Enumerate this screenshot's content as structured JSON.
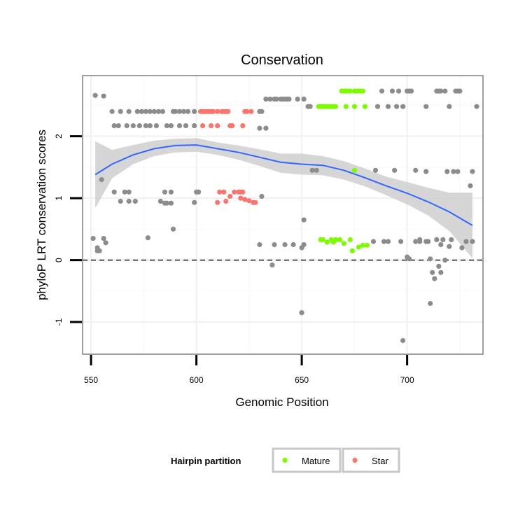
{
  "chart_data": {
    "type": "scatter",
    "title": "Conservation",
    "xlabel": "Genomic Position",
    "ylabel": "phyloP LRT conservation scores",
    "xlim": [
      546,
      736
    ],
    "ylim": [
      -1.52,
      2.98
    ],
    "x_ticks": [
      550,
      600,
      650,
      700
    ],
    "y_ticks": [
      -1,
      0,
      1,
      2
    ],
    "grid": true,
    "reference_line": {
      "y": 0,
      "style": "dashed"
    },
    "legend": {
      "title": "Hairpin partition",
      "position": "bottom",
      "entries": [
        {
          "label": "Mature",
          "color": "#7CFC00"
        },
        {
          "label": "Star",
          "color": "#F8766D"
        }
      ]
    },
    "colors": {
      "other": "#8c8c8c",
      "mature": "#7CFC00",
      "star": "#F8766D",
      "smooth_line": "#3366FF",
      "ribbon": "#cccccc"
    },
    "smooth": {
      "x": [
        552,
        560,
        570,
        580,
        590,
        600,
        610,
        620,
        630,
        640,
        650,
        660,
        670,
        680,
        690,
        700,
        710,
        720,
        731
      ],
      "y": [
        1.38,
        1.55,
        1.7,
        1.8,
        1.85,
        1.86,
        1.8,
        1.74,
        1.66,
        1.58,
        1.55,
        1.53,
        1.45,
        1.33,
        1.2,
        1.08,
        0.94,
        0.78,
        0.56
      ],
      "lower": [
        0.84,
        1.32,
        1.55,
        1.68,
        1.74,
        1.75,
        1.7,
        1.62,
        1.52,
        1.41,
        1.38,
        1.37,
        1.3,
        1.19,
        1.05,
        0.9,
        0.72,
        0.47,
        0.03
      ],
      "upper": [
        1.92,
        1.78,
        1.86,
        1.93,
        1.96,
        1.97,
        1.9,
        1.85,
        1.79,
        1.72,
        1.72,
        1.68,
        1.6,
        1.48,
        1.35,
        1.26,
        1.17,
        1.09,
        1.09
      ]
    },
    "series": [
      {
        "name": "Mature",
        "x": [
          669,
          670,
          671,
          672,
          673,
          675,
          676,
          677,
          678,
          679,
          658,
          659,
          660,
          661,
          662,
          663,
          664,
          665,
          666,
          671,
          675,
          680,
          675,
          659,
          660,
          662,
          664,
          665,
          666,
          668,
          670,
          673,
          677,
          679,
          681,
          674
        ],
        "y": [
          2.73,
          2.73,
          2.73,
          2.73,
          2.73,
          2.73,
          2.73,
          2.73,
          2.73,
          2.73,
          2.48,
          2.48,
          2.48,
          2.48,
          2.48,
          2.48,
          2.48,
          2.48,
          2.48,
          2.48,
          2.48,
          2.48,
          1.45,
          0.33,
          0.33,
          0.29,
          0.33,
          0.29,
          0.33,
          0.33,
          0.27,
          0.33,
          0.21,
          0.24,
          0.24,
          0.15
        ]
      },
      {
        "name": "Star",
        "x": [
          602,
          603,
          604,
          605,
          606,
          607,
          608,
          610,
          612,
          613,
          614,
          615,
          623,
          624,
          626,
          603,
          607,
          610,
          616,
          617,
          622,
          611,
          613,
          618,
          620,
          621,
          622,
          616,
          621,
          623,
          625,
          627,
          628,
          610,
          614
        ],
        "y": [
          2.4,
          2.4,
          2.4,
          2.4,
          2.4,
          2.4,
          2.4,
          2.4,
          2.4,
          2.4,
          2.4,
          2.4,
          2.4,
          2.4,
          2.4,
          2.17,
          2.17,
          2.17,
          2.17,
          2.17,
          2.17,
          1.1,
          1.1,
          1.1,
          1.1,
          1.1,
          1.1,
          1.03,
          1.0,
          0.98,
          0.96,
          0.93,
          0.93,
          0.93,
          0.95
        ]
      },
      {
        "name": "",
        "x": [
          552,
          556,
          560,
          564,
          568,
          572,
          574,
          576,
          578,
          580,
          582,
          584,
          589,
          590,
          592,
          594,
          596,
          599,
          630,
          631,
          561,
          563,
          567,
          570,
          573,
          576,
          578,
          581,
          586,
          588,
          592,
          595,
          599,
          633,
          635,
          637,
          638,
          640,
          641,
          642,
          643,
          644,
          648,
          651,
          653,
          654,
          688,
          693,
          696,
          700,
          701,
          702,
          714,
          715,
          716,
          718,
          723,
          724,
          725,
          686,
          691,
          695,
          698,
          709,
          720,
          733,
          655,
          657,
          685,
          694,
          704,
          709,
          719,
          722,
          724,
          731,
          730,
          630,
          633,
          600,
          601,
          555,
          561,
          566,
          568,
          564,
          568,
          571,
          583,
          585,
          586,
          588,
          599,
          631,
          585,
          588,
          553,
          554,
          557,
          577,
          589,
          630,
          637,
          642,
          646,
          651,
          706,
          714,
          717,
          721,
          684,
          689,
          691,
          697,
          704,
          706,
          709,
          710,
          701,
          716,
          720,
          726,
          728,
          731,
          551,
          556,
          553,
          636,
          651,
          700,
          712,
          716,
          711,
          713,
          715,
          718,
          650,
          711,
          650,
          698
        ],
        "y": [
          2.66,
          2.65,
          2.4,
          2.4,
          2.4,
          2.4,
          2.4,
          2.4,
          2.4,
          2.4,
          2.4,
          2.4,
          2.4,
          2.4,
          2.4,
          2.4,
          2.4,
          2.4,
          2.4,
          2.4,
          2.17,
          2.17,
          2.17,
          2.17,
          2.17,
          2.17,
          2.17,
          2.17,
          2.17,
          2.17,
          2.17,
          2.17,
          2.17,
          2.6,
          2.6,
          2.6,
          2.6,
          2.6,
          2.6,
          2.6,
          2.6,
          2.6,
          2.6,
          2.6,
          2.48,
          2.48,
          2.73,
          2.73,
          2.73,
          2.73,
          2.73,
          2.73,
          2.73,
          2.73,
          2.73,
          2.73,
          2.73,
          2.73,
          2.73,
          2.48,
          2.48,
          2.48,
          2.48,
          2.48,
          2.48,
          2.48,
          1.45,
          1.45,
          1.45,
          1.45,
          1.45,
          1.43,
          1.43,
          1.43,
          1.43,
          1.43,
          1.2,
          2.13,
          2.13,
          1.1,
          1.1,
          1.3,
          1.1,
          1.1,
          1.1,
          0.95,
          0.95,
          0.95,
          0.95,
          0.92,
          0.92,
          0.92,
          0.93,
          1.03,
          1.1,
          1.1,
          0.2,
          0.15,
          0.28,
          0.36,
          0.5,
          0.25,
          0.25,
          0.25,
          0.25,
          0.25,
          0.33,
          0.33,
          0.33,
          0.33,
          0.3,
          0.3,
          0.3,
          0.3,
          0.3,
          0.3,
          0.3,
          0.3,
          0.02,
          0.25,
          0.22,
          0.2,
          0.3,
          0.3,
          0.35,
          0.35,
          0.15,
          -0.08,
          0.65,
          0.05,
          -0.2,
          -0.2,
          0.02,
          -0.3,
          -0.1,
          0.0,
          0.2,
          -0.7,
          -0.85,
          -1.3
        ]
      }
    ]
  }
}
